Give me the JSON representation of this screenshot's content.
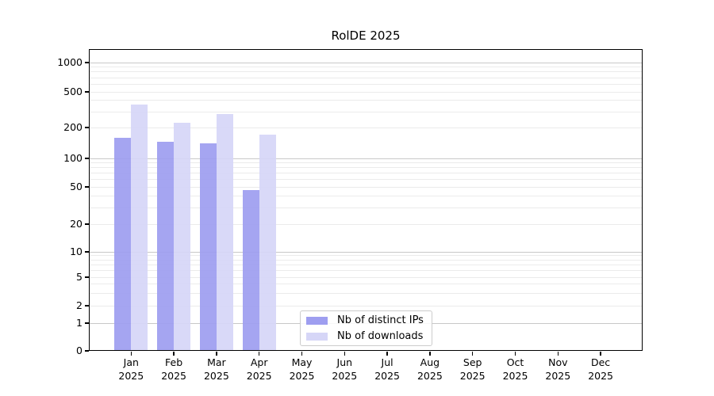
{
  "chart_data": {
    "type": "bar",
    "title": "RolDE 2025",
    "year": "2025",
    "categories": [
      "Jan",
      "Feb",
      "Mar",
      "Apr",
      "May",
      "Jun",
      "Jul",
      "Aug",
      "Sep",
      "Oct",
      "Nov",
      "Dec"
    ],
    "series": [
      {
        "name": "Nb of distinct IPs",
        "color": "#9e9ef0",
        "values": [
          160,
          145,
          140,
          46,
          null,
          null,
          null,
          null,
          null,
          null,
          null,
          null
        ]
      },
      {
        "name": "Nb of downloads",
        "color": "#d6d6f7",
        "values": [
          360,
          228,
          283,
          170,
          null,
          null,
          null,
          null,
          null,
          null,
          null,
          null
        ]
      }
    ],
    "y_ticks": [
      0,
      1,
      2,
      5,
      10,
      20,
      50,
      100,
      200,
      500,
      1000
    ],
    "yscale": "symlog",
    "ylim": [
      0,
      1380
    ],
    "xlabel": "",
    "ylabel": "",
    "grid": "horizontal major and minor gridlines",
    "legend_position": "lower center"
  }
}
